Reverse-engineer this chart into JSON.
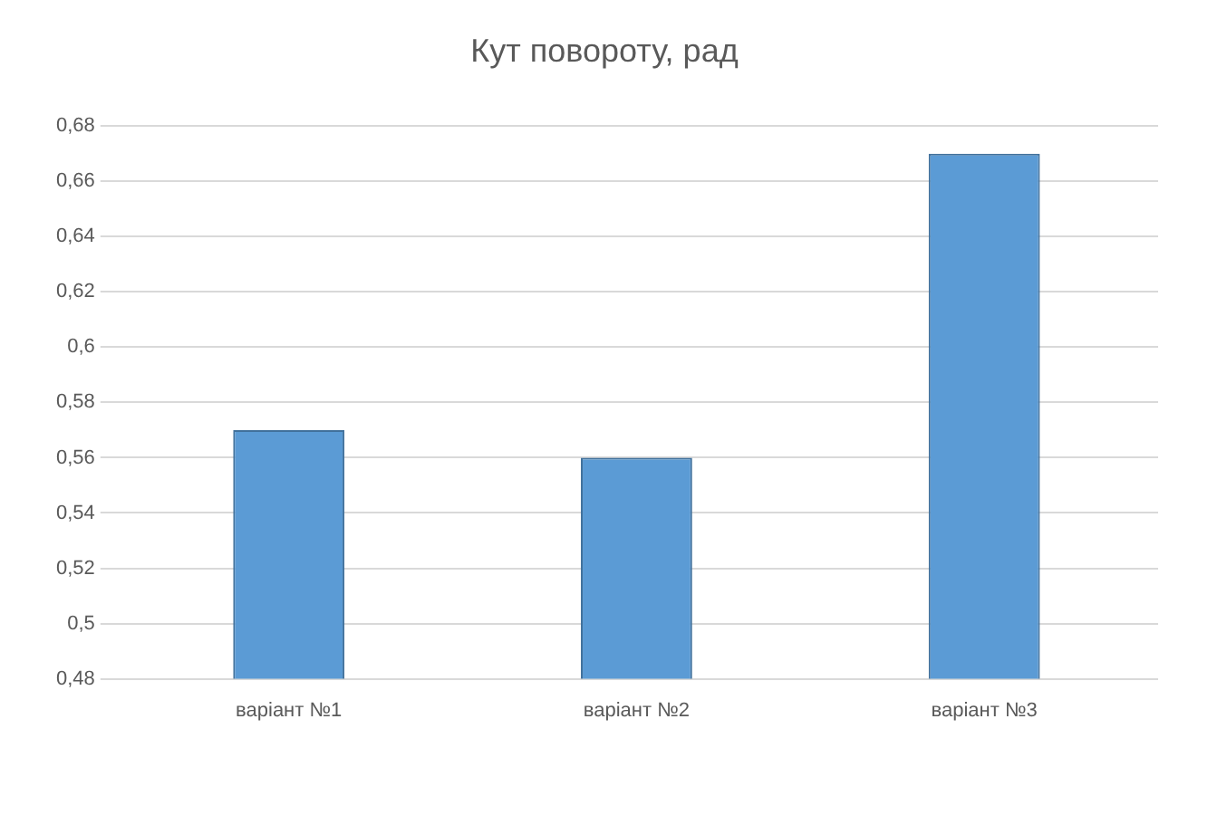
{
  "chart_data": {
    "type": "bar",
    "title": "Кут повороту, рад",
    "categories": [
      "варіант №1",
      "варіант №2",
      "варіант №3"
    ],
    "values": [
      0.57,
      0.56,
      0.67
    ],
    "color": "#5b9bd5",
    "ylim": [
      0.48,
      0.68
    ],
    "yticks": [
      {
        "value": 0.48,
        "label": "0,48"
      },
      {
        "value": 0.5,
        "label": "0,5"
      },
      {
        "value": 0.52,
        "label": "0,52"
      },
      {
        "value": 0.54,
        "label": "0,54"
      },
      {
        "value": 0.56,
        "label": "0,56"
      },
      {
        "value": 0.58,
        "label": "0,58"
      },
      {
        "value": 0.6,
        "label": "0,6"
      },
      {
        "value": 0.62,
        "label": "0,62"
      },
      {
        "value": 0.64,
        "label": "0,64"
      },
      {
        "value": 0.66,
        "label": "0,66"
      },
      {
        "value": 0.68,
        "label": "0,68"
      }
    ],
    "grid": "y",
    "legend": false
  }
}
